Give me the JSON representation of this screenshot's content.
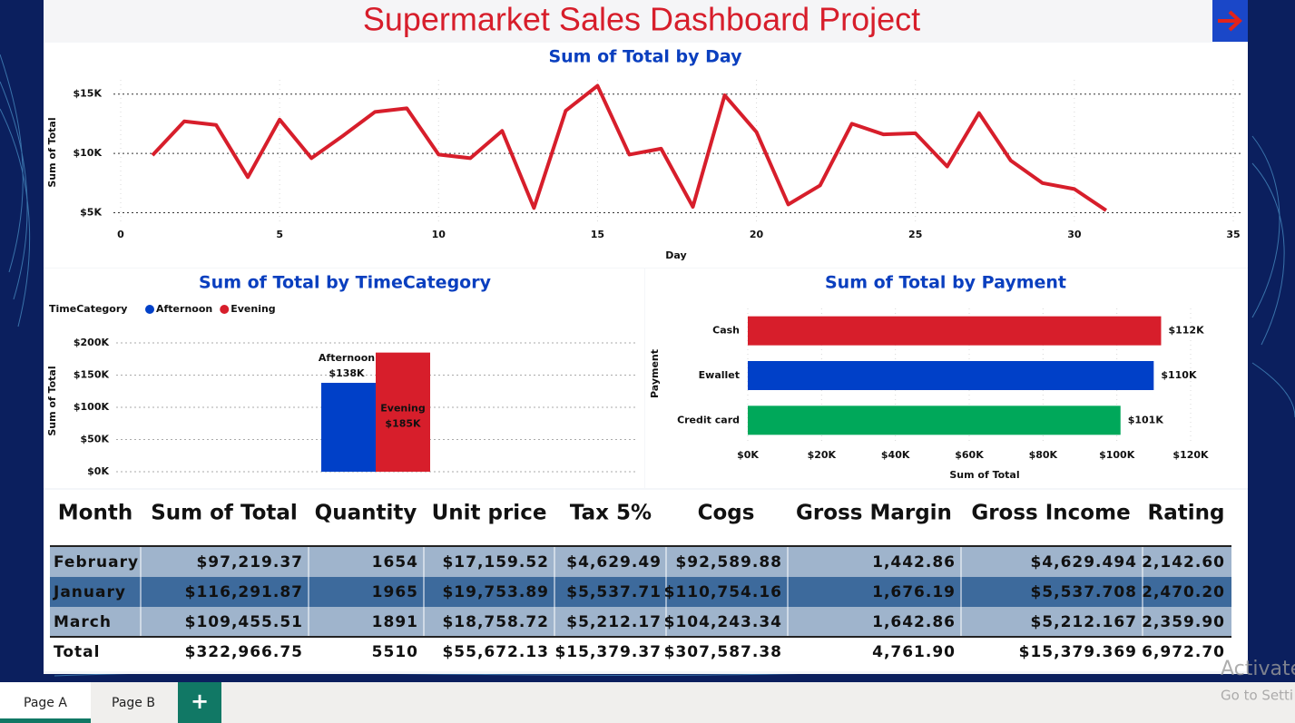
{
  "title": "Supermarket Sales Dashboard Project",
  "chart_data": [
    {
      "type": "line",
      "title": "Sum of Total by Day",
      "x_label": "Day",
      "y_label": "Sum of Total",
      "x": [
        1,
        2,
        3,
        4,
        5,
        6,
        7,
        8,
        9,
        10,
        11,
        12,
        13,
        14,
        15,
        16,
        17,
        18,
        19,
        20,
        21,
        22,
        23,
        24,
        25,
        26,
        27,
        28,
        29,
        30,
        31
      ],
      "values": [
        9850,
        12700,
        12400,
        8000,
        12850,
        9600,
        11500,
        13500,
        13800,
        9900,
        9600,
        11900,
        5400,
        13600,
        15700,
        9900,
        10400,
        5500,
        14900,
        11800,
        5700,
        7300,
        12500,
        11600,
        11700,
        8900,
        13400,
        9400,
        7500,
        7000,
        5200
      ],
      "color": "#d71e2b",
      "xlim": [
        0,
        35
      ],
      "xticks": [
        0,
        5,
        10,
        15,
        20,
        25,
        30,
        35
      ],
      "ylim": [
        4200,
        16200
      ],
      "yticks": [
        {
          "value": 5000,
          "label": "$5K"
        },
        {
          "value": 10000,
          "label": "$10K"
        },
        {
          "value": 15000,
          "label": "$15K"
        }
      ],
      "grid": true
    },
    {
      "type": "bar",
      "title": "Sum of Total by TimeCategory",
      "y_label": "Sum of Total",
      "legend_title": "TimeCategory",
      "series": [
        {
          "name": "Afternoon",
          "color": "#0040c8",
          "values": [
            138000
          ],
          "value_labels": [
            "$138K"
          ]
        },
        {
          "name": "Evening",
          "color": "#d71e2b",
          "values": [
            185000
          ],
          "value_labels": [
            "$185K"
          ]
        }
      ],
      "ylim": [
        0,
        200000
      ],
      "yticks": [
        {
          "value": 0,
          "label": "$0K"
        },
        {
          "value": 50000,
          "label": "$50K"
        },
        {
          "value": 100000,
          "label": "$100K"
        },
        {
          "value": 150000,
          "label": "$150K"
        },
        {
          "value": 200000,
          "label": "$200K"
        }
      ],
      "grid": true,
      "legend": "top-left"
    },
    {
      "type": "hbar",
      "title": "Sum of Total by Payment",
      "x_label": "Sum of Total",
      "y_label": "Payment",
      "categories": [
        "Cash",
        "Ewallet",
        "Credit card"
      ],
      "values": [
        112000,
        110000,
        101000
      ],
      "value_labels": [
        "$112K",
        "$110K",
        "$101K"
      ],
      "colors": [
        "#d71e2b",
        "#0040c8",
        "#00a85a"
      ],
      "xlim": [
        0,
        120000
      ],
      "xticks": [
        {
          "value": 0,
          "label": "$0K"
        },
        {
          "value": 20000,
          "label": "$20K"
        },
        {
          "value": 40000,
          "label": "$40K"
        },
        {
          "value": 60000,
          "label": "$60K"
        },
        {
          "value": 80000,
          "label": "$80K"
        },
        {
          "value": 100000,
          "label": "$100K"
        },
        {
          "value": 120000,
          "label": "$120K"
        }
      ],
      "grid": true
    }
  ],
  "table": {
    "header": [
      "Month",
      "Sum of Total",
      "Quantity",
      "Unit price",
      "Tax 5%",
      "Cogs",
      "Gross Margin",
      "Gross Income",
      "Rating"
    ],
    "rows": [
      [
        "February",
        "$97,219.37",
        "1654",
        "$17,159.52",
        "$4,629.49",
        "$92,589.88",
        "1,442.86",
        "$4,629.494",
        "2,142.60"
      ],
      [
        "January",
        "$116,291.87",
        "1965",
        "$19,753.89",
        "$5,537.71",
        "$110,754.16",
        "1,676.19",
        "$5,537.708",
        "2,470.20"
      ],
      [
        "March",
        "$109,455.51",
        "1891",
        "$18,758.72",
        "$5,212.17",
        "$104,243.34",
        "1,642.86",
        "$5,212.167",
        "2,359.90"
      ]
    ],
    "total": [
      "Total",
      "$322,966.75",
      "5510",
      "$55,672.13",
      "$15,379.37",
      "$307,587.38",
      "4,761.90",
      "$15,379.369",
      "6,972.70"
    ]
  },
  "tabs": [
    "Page A",
    "Page B"
  ],
  "add_tab": "+",
  "watermark": [
    "Activate",
    "Go to Setti"
  ]
}
